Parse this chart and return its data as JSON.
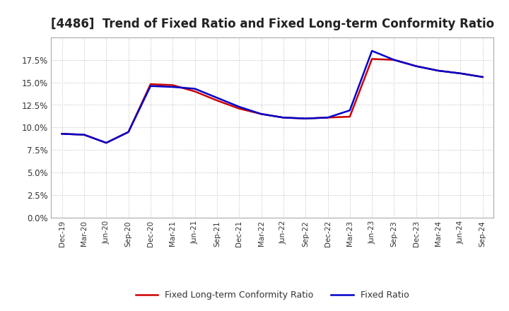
{
  "title": "[4486]  Trend of Fixed Ratio and Fixed Long-term Conformity Ratio",
  "title_fontsize": 12,
  "ylim": [
    0.0,
    0.2
  ],
  "yticks": [
    0.0,
    0.025,
    0.05,
    0.075,
    0.1,
    0.125,
    0.15,
    0.175
  ],
  "ytick_labels": [
    "0.0%",
    "2.5%",
    "5.0%",
    "7.5%",
    "10.0%",
    "12.5%",
    "15.0%",
    "17.5%"
  ],
  "background_color": "#ffffff",
  "plot_bg_color": "#ffffff",
  "grid_color": "#bbbbbb",
  "x_labels": [
    "Dec-19",
    "Mar-20",
    "Jun-20",
    "Sep-20",
    "Dec-20",
    "Mar-21",
    "Jun-21",
    "Sep-21",
    "Dec-21",
    "Mar-22",
    "Jun-22",
    "Sep-22",
    "Dec-22",
    "Mar-23",
    "Jun-23",
    "Sep-23",
    "Dec-23",
    "Mar-24",
    "Jun-24",
    "Sep-24"
  ],
  "fixed_ratio": [
    0.093,
    0.092,
    0.083,
    0.095,
    0.146,
    0.145,
    0.143,
    0.133,
    0.123,
    0.115,
    0.111,
    0.11,
    0.111,
    0.119,
    0.185,
    0.175,
    0.168,
    0.163,
    0.16,
    0.156
  ],
  "fixed_lt_ratio": [
    0.093,
    0.092,
    0.083,
    0.095,
    0.148,
    0.147,
    0.14,
    0.13,
    0.121,
    0.115,
    0.111,
    0.11,
    0.111,
    0.112,
    0.176,
    0.175,
    0.168,
    0.163,
    0.16,
    0.156
  ],
  "fixed_ratio_color": "#0000cc",
  "fixed_lt_ratio_color": "#cc0000",
  "line_width": 1.8,
  "legend_fixed": "Fixed Ratio",
  "legend_fixed_lt": "Fixed Long-term Conformity Ratio"
}
